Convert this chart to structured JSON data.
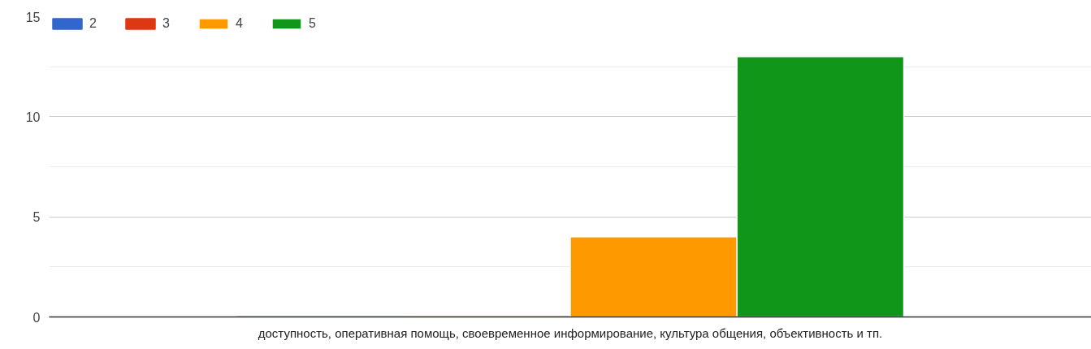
{
  "chart_data": {
    "type": "bar",
    "categories": [
      "доступность, оперативная помощь, своевременное информирование, культура общения, объективность и тп."
    ],
    "series": [
      {
        "name": "2",
        "color": "#3366cc",
        "values": [
          0
        ]
      },
      {
        "name": "3",
        "color": "#dc3912",
        "values": [
          0
        ]
      },
      {
        "name": "4",
        "color": "#ff9900",
        "values": [
          4
        ]
      },
      {
        "name": "5",
        "color": "#109618",
        "values": [
          13
        ]
      }
    ],
    "ylim": [
      0,
      15
    ],
    "yticks": [
      0,
      5,
      10,
      15
    ],
    "grid": "y",
    "legend": "top left"
  }
}
